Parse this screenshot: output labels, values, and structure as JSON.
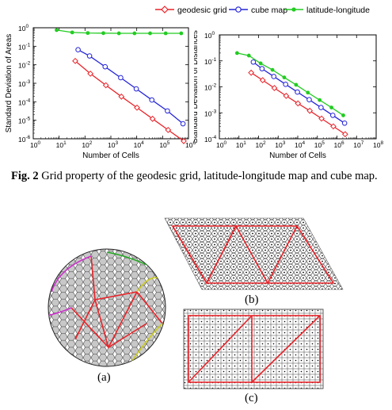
{
  "legend": {
    "items": [
      {
        "label": "geodesic grid",
        "color": "#e8242a",
        "marker": "diamond"
      },
      {
        "label": "cube map",
        "color": "#2424d8",
        "marker": "circle"
      },
      {
        "label": "latitude-longitude",
        "color": "#22cc22",
        "marker": "star"
      }
    ]
  },
  "caption": {
    "label": "Fig. 2",
    "text": " Grid property of the geodesic grid, latitude-longitude map and cube map."
  },
  "panels": {
    "a": "(a)",
    "b": "(b)",
    "c": "(c)"
  },
  "chart_data": [
    {
      "type": "line",
      "xlabel": "Number of Cells",
      "ylabel": "Standard Deviation of Areas",
      "xscale": "log",
      "yscale": "log",
      "xlim": [
        1,
        1000000
      ],
      "ylim": [
        1e-06,
        1
      ],
      "xticks": [
        "10^0",
        "10^1",
        "10^2",
        "10^3",
        "10^4",
        "10^5",
        "10^6"
      ],
      "yticks": [
        "10^0",
        "10^-1",
        "10^-2",
        "10^-3",
        "10^-4",
        "10^-5",
        "10^-6"
      ],
      "series": [
        {
          "name": "geodesic grid",
          "color": "#e8242a",
          "marker": "diamond",
          "x": [
            42,
            162,
            642,
            2562,
            10242,
            40962,
            163842,
            655362
          ],
          "y": [
            0.016,
            0.0033,
            0.00078,
            0.00019,
            4.8e-05,
            1.2e-05,
            3e-06,
            7.5e-07
          ]
        },
        {
          "name": "cube map",
          "color": "#2424d8",
          "marker": "circle",
          "x": [
            54,
            150,
            600,
            2400,
            9600,
            38400,
            153600,
            614400
          ],
          "y": [
            0.065,
            0.03,
            0.0078,
            0.002,
            0.0005,
            0.000125,
            3.2e-05,
            6.5e-06
          ]
        },
        {
          "name": "latitude-longitude",
          "color": "#22cc22",
          "marker": "star",
          "x": [
            8,
            32,
            128,
            512,
            2048,
            8192,
            32768,
            131072,
            524288
          ],
          "y": [
            0.75,
            0.56,
            0.52,
            0.51,
            0.5,
            0.5,
            0.5,
            0.5,
            0.5
          ]
        }
      ]
    },
    {
      "type": "line",
      "xlabel": "Number of Cells",
      "ylabel": "Standard Deviation of Distances",
      "xscale": "log",
      "yscale": "log",
      "xlim": [
        1,
        100000000
      ],
      "ylim": [
        0.0001,
        1
      ],
      "xticks": [
        "10^0",
        "10^1",
        "10^2",
        "10^3",
        "10^4",
        "10^5",
        "10^6",
        "10^7",
        "10^8"
      ],
      "yticks": [
        "10^0",
        "10^-1",
        "10^-2",
        "10^-3",
        "10^-4"
      ],
      "series": [
        {
          "name": "geodesic grid",
          "color": "#e8242a",
          "marker": "diamond",
          "x": [
            42,
            162,
            642,
            2562,
            10242,
            40962,
            163842,
            655362,
            2621442
          ],
          "y": [
            0.035,
            0.018,
            0.009,
            0.0045,
            0.0023,
            0.0012,
            0.0006,
            0.0003,
            0.00015
          ]
        },
        {
          "name": "cube map",
          "color": "#2424d8",
          "marker": "circle",
          "x": [
            54,
            150,
            600,
            2400,
            9600,
            38400,
            153600,
            614400,
            2457600
          ],
          "y": [
            0.09,
            0.05,
            0.025,
            0.0125,
            0.0063,
            0.0032,
            0.0016,
            0.0008,
            0.0004
          ]
        },
        {
          "name": "latitude-longitude",
          "color": "#22cc22",
          "marker": "star",
          "x": [
            8,
            32,
            128,
            512,
            2048,
            8192,
            32768,
            131072,
            524288,
            2097152
          ],
          "y": [
            0.2,
            0.16,
            0.08,
            0.045,
            0.023,
            0.012,
            0.006,
            0.0031,
            0.0016,
            0.0008
          ]
        }
      ]
    }
  ]
}
